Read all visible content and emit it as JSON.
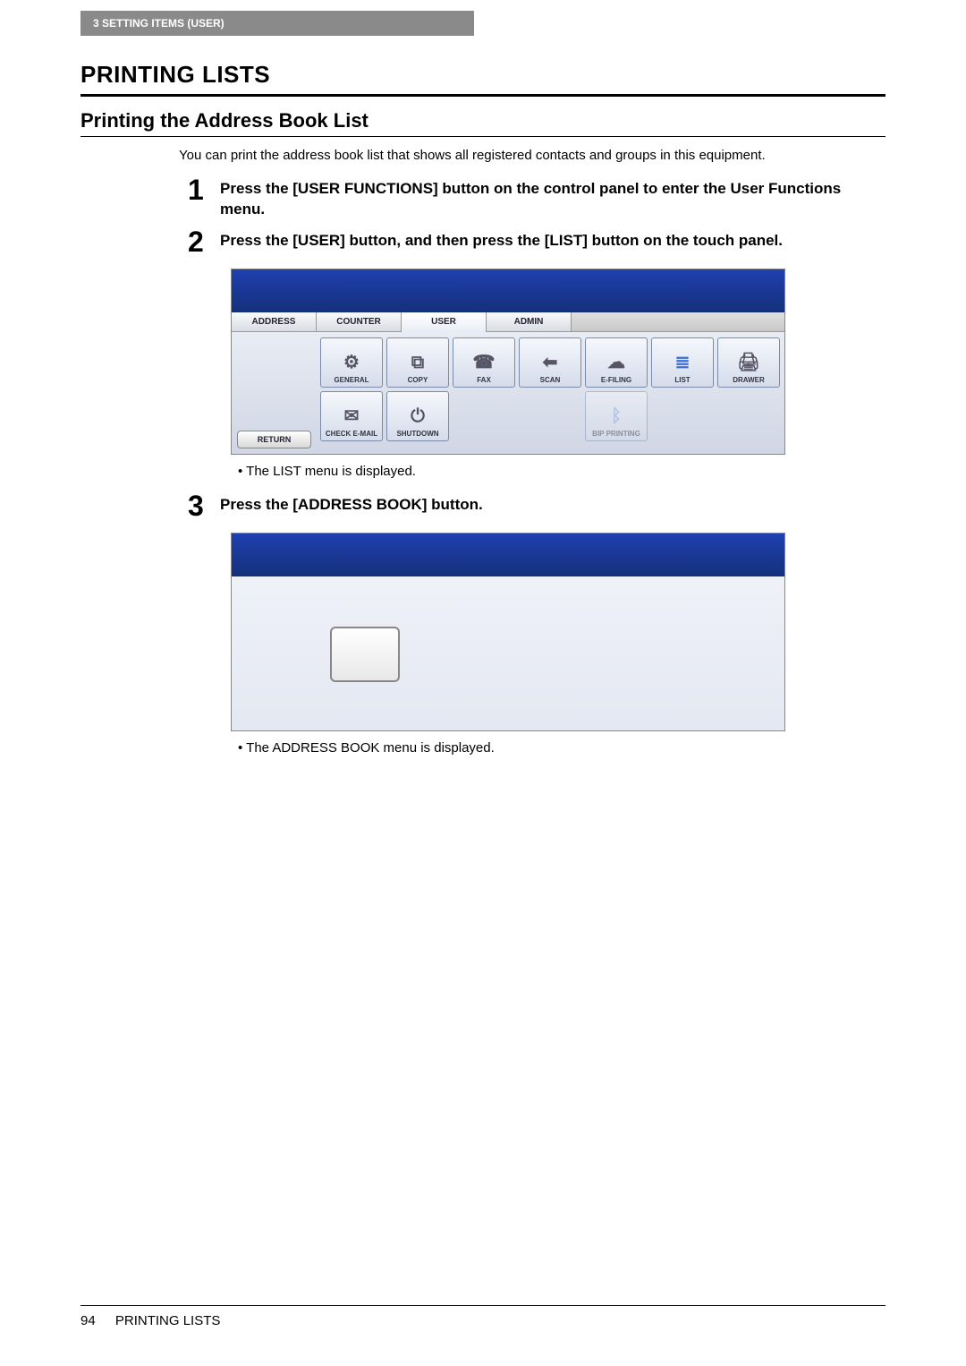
{
  "header": {
    "chapter_label": "3   SETTING ITEMS (USER)"
  },
  "section": {
    "title": "PRINTING LISTS"
  },
  "subsection": {
    "title": "Printing the Address Book List"
  },
  "intro": "You can print the address book list that shows all registered contacts and groups in this equipment.",
  "steps": {
    "s1": {
      "num": "1",
      "text": "Press the [USER FUNCTIONS] button on the control panel to enter the User Functions menu."
    },
    "s2": {
      "num": "2",
      "text": "Press the [USER] button, and then press the [LIST] button on the touch panel."
    },
    "s3": {
      "num": "3",
      "text": "Press the [ADDRESS BOOK] button."
    }
  },
  "notes": {
    "n1": "The LIST menu is displayed.",
    "n2": "The ADDRESS BOOK menu is displayed."
  },
  "shot1": {
    "tabs": {
      "address": "ADDRESS",
      "counter": "COUNTER",
      "user": "USER",
      "admin": "ADMIN"
    },
    "return_label": "RETURN",
    "buttons": {
      "general": "GENERAL",
      "copy": "COPY",
      "fax": "FAX",
      "scan": "SCAN",
      "efiling": "E-FILING",
      "list": "LIST",
      "drawer": "DRAWER",
      "checkemail": "CHECK E-MAIL",
      "shutdown": "SHUTDOWN",
      "bip": "BIP PRINTING"
    }
  },
  "footer": {
    "page": "94",
    "title": "PRINTING LISTS"
  }
}
